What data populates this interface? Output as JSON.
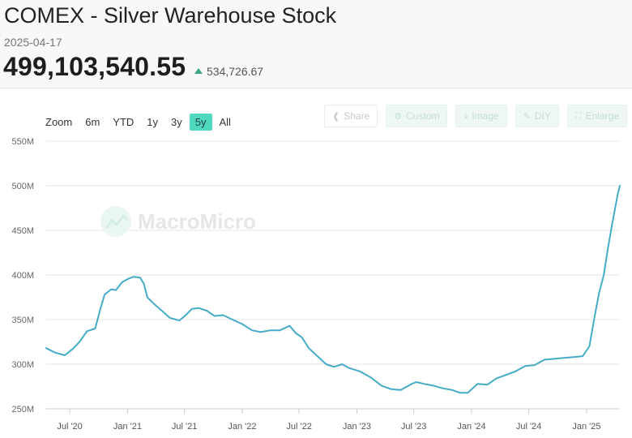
{
  "header": {
    "title": "COMEX - Silver Warehouse Stock",
    "date": "2025-04-17",
    "value": "499,103,540.55",
    "change": "534,726.67"
  },
  "zoom": {
    "label": "Zoom",
    "options": [
      "6m",
      "YTD",
      "1y",
      "3y",
      "5y",
      "All"
    ],
    "active": "5y"
  },
  "toolbar": {
    "share": "Share",
    "custom": "Custom",
    "image": "Image",
    "diy": "DIY",
    "enlarge": "Enlarge"
  },
  "watermark": "MacroMicro",
  "colors": {
    "line": "#45acc8",
    "accent": "#4fd9c0",
    "up": "#3aa57a"
  },
  "chart_data": {
    "type": "line",
    "title": "COMEX - Silver Warehouse Stock",
    "xlabel": "",
    "ylabel": "",
    "y_unit": "M",
    "ylim": [
      250,
      550
    ],
    "yticks": [
      250,
      300,
      350,
      400,
      450,
      500,
      550
    ],
    "ytick_labels": [
      "250M",
      "300M",
      "350M",
      "400M",
      "450M",
      "500M",
      "550M"
    ],
    "xlim": [
      "2020-04-17",
      "2025-04-17"
    ],
    "xticks": [
      "2020-07-01",
      "2021-01-01",
      "2021-07-01",
      "2022-01-01",
      "2022-07-01",
      "2023-01-01",
      "2023-07-01",
      "2024-01-01",
      "2024-07-01",
      "2025-01-01"
    ],
    "xtick_labels": [
      "Jul '20",
      "Jan '21",
      "Jul '21",
      "Jan '22",
      "Jul '22",
      "Jan '23",
      "Jul '23",
      "Jan '24",
      "Jul '24",
      "Jan '25"
    ],
    "legend": "none",
    "grid": "horizontal",
    "series": [
      {
        "name": "Silver Warehouse Stock (M oz)",
        "x": [
          "2020-04-17",
          "2020-05-15",
          "2020-06-15",
          "2020-07-10",
          "2020-08-01",
          "2020-08-25",
          "2020-09-20",
          "2020-10-05",
          "2020-10-20",
          "2020-11-10",
          "2020-11-25",
          "2020-12-15",
          "2021-01-05",
          "2021-01-20",
          "2021-02-10",
          "2021-02-22",
          "2021-03-05",
          "2021-03-25",
          "2021-04-20",
          "2021-05-15",
          "2021-06-15",
          "2021-07-05",
          "2021-07-25",
          "2021-08-15",
          "2021-09-10",
          "2021-10-05",
          "2021-11-01",
          "2021-12-01",
          "2022-01-01",
          "2022-02-01",
          "2022-03-01",
          "2022-04-01",
          "2022-05-01",
          "2022-06-01",
          "2022-06-20",
          "2022-07-10",
          "2022-08-01",
          "2022-08-25",
          "2022-09-25",
          "2022-10-20",
          "2022-11-15",
          "2022-12-05",
          "2023-01-10",
          "2023-02-15",
          "2023-03-20",
          "2023-04-20",
          "2023-05-20",
          "2023-06-25",
          "2023-07-10",
          "2023-08-01",
          "2023-09-01",
          "2023-10-01",
          "2023-11-01",
          "2023-11-25",
          "2023-12-20",
          "2024-01-20",
          "2024-02-20",
          "2024-03-20",
          "2024-04-20",
          "2024-05-20",
          "2024-06-20",
          "2024-07-20",
          "2024-08-20",
          "2024-09-20",
          "2024-10-20",
          "2024-11-20",
          "2024-12-20",
          "2025-01-10",
          "2025-01-25",
          "2025-02-10",
          "2025-02-25",
          "2025-03-10",
          "2025-03-25",
          "2025-04-10",
          "2025-04-17"
        ],
        "values": [
          318,
          313,
          310,
          317,
          325,
          337,
          340,
          360,
          378,
          384,
          383,
          392,
          396,
          398,
          397,
          390,
          375,
          368,
          360,
          352,
          349,
          355,
          362,
          363,
          360,
          354,
          355,
          350,
          345,
          338,
          336,
          338,
          338,
          343,
          335,
          330,
          318,
          310,
          300,
          297,
          300,
          296,
          292,
          285,
          276,
          272,
          271,
          278,
          280,
          278,
          276,
          273,
          271,
          268,
          268,
          278,
          277,
          284,
          288,
          292,
          298,
          299,
          305,
          306,
          307,
          308,
          309,
          320,
          350,
          380,
          400,
          430,
          460,
          490,
          500
        ]
      }
    ]
  }
}
